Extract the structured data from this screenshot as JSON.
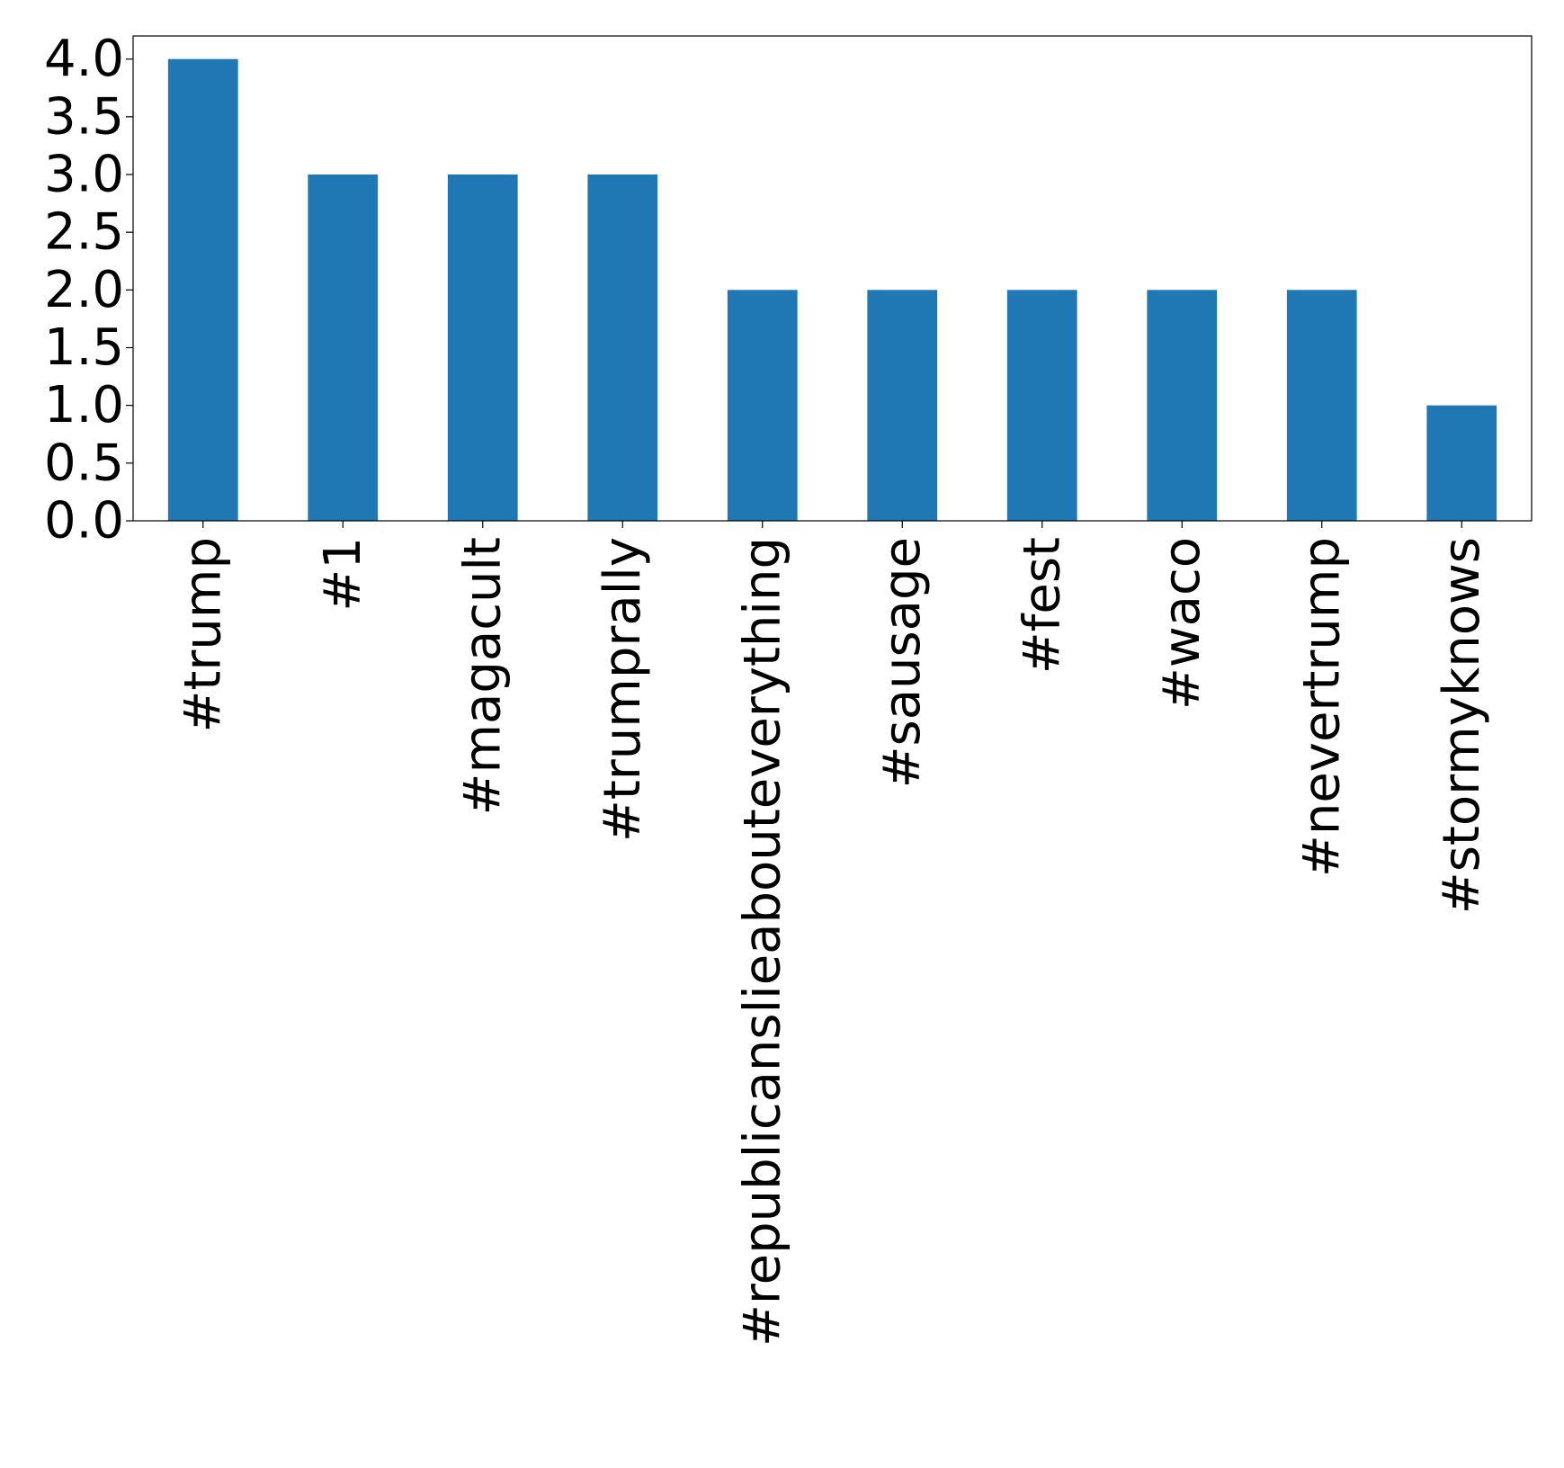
{
  "chart_data": {
    "type": "bar",
    "categories": [
      "#trump",
      "#1",
      "#magacult",
      "#trumprally",
      "#republicanslieabouteverything",
      "#sausage",
      "#fest",
      "#waco",
      "#nevertrump",
      "#stormyknows"
    ],
    "values": [
      4,
      3,
      3,
      3,
      2,
      2,
      2,
      2,
      2,
      1
    ],
    "yticks": [
      "0.0",
      "0.5",
      "1.0",
      "1.5",
      "2.0",
      "2.5",
      "3.0",
      "3.5",
      "4.0"
    ],
    "title": "",
    "xlabel": "",
    "ylabel": "",
    "ylim": [
      0,
      4.2
    ],
    "grid": false,
    "bar_color": "#1f77b4"
  }
}
